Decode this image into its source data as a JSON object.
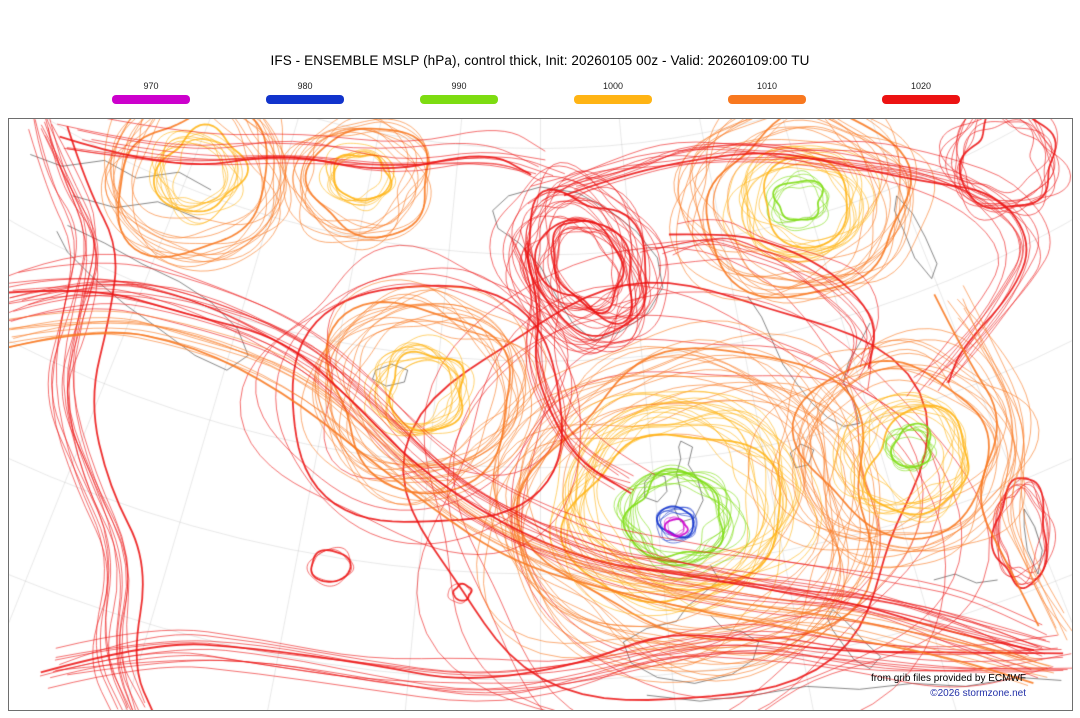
{
  "header": {
    "title": "IFS - ENSEMBLE MSLP (hPa), control thick, Init: 20260105 00z - Valid: 20260109:00 TU"
  },
  "legend": {
    "items": [
      {
        "label": "970",
        "color": "#cc00cc"
      },
      {
        "label": "980",
        "color": "#1133cc"
      },
      {
        "label": "990",
        "color": "#7ddc11"
      },
      {
        "label": "1000",
        "color": "#ffb414"
      },
      {
        "label": "1010",
        "color": "#f8781f"
      },
      {
        "label": "1020",
        "color": "#ec1212"
      }
    ]
  },
  "footer": {
    "credit": "from grib files provided by ECMWF",
    "copyright": "©2026 stormzone.net"
  },
  "chart_data": {
    "type": "spaghetti-contour",
    "model": "IFS - ENSEMBLE",
    "variable": "MSLP",
    "units": "hPa",
    "member_style": "control thick",
    "init": "20260105 00z",
    "valid": "20260109:00 TU",
    "levels_hpa": [
      970,
      980,
      990,
      1000,
      1010,
      1020
    ],
    "systems": [
      {
        "name": "low-british-isles",
        "cx": 0.632,
        "cy": 0.66,
        "ry": 0.85,
        "rings": [
          {
            "level": 1020,
            "r": 0.215,
            "members": 7,
            "wobble": 0.22
          },
          {
            "level": 1010,
            "r": 0.16,
            "members": 20,
            "wobble": 0.24
          },
          {
            "level": 1000,
            "r": 0.098,
            "members": 20,
            "wobble": 0.26,
            "cy": 0.645
          },
          {
            "level": 990,
            "r": 0.047,
            "members": 14,
            "wobble": 0.3,
            "cx": 0.628,
            "cy": 0.675
          },
          {
            "level": 980,
            "r": 0.017,
            "members": 6,
            "wobble": 0.3,
            "cx": 0.628,
            "cy": 0.685
          },
          {
            "level": 970,
            "r": 0.009,
            "members": 4,
            "wobble": 0.28,
            "cx": 0.627,
            "cy": 0.69
          }
        ]
      },
      {
        "name": "low-mid-atlantic",
        "cx": 0.387,
        "cy": 0.46,
        "ry": 0.9,
        "rings": [
          {
            "level": 1020,
            "r": 0.14,
            "members": 5,
            "wobble": 0.22
          },
          {
            "level": 1010,
            "r": 0.089,
            "members": 16,
            "wobble": 0.24
          },
          {
            "level": 1000,
            "r": 0.04,
            "members": 12,
            "wobble": 0.28
          }
        ]
      },
      {
        "name": "system-northwest",
        "cx": 0.175,
        "cy": 0.09,
        "ry": 0.95,
        "rings": [
          {
            "level": 1010,
            "r": 0.08,
            "members": 13,
            "wobble": 0.24
          },
          {
            "level": 1000,
            "r": 0.036,
            "members": 10,
            "wobble": 0.26
          }
        ]
      },
      {
        "name": "system-north-center",
        "cx": 0.33,
        "cy": 0.1,
        "ry": 0.9,
        "rings": [
          {
            "level": 1010,
            "r": 0.058,
            "members": 10,
            "wobble": 0.26
          },
          {
            "level": 1000,
            "r": 0.027,
            "members": 8,
            "wobble": 0.28
          }
        ]
      },
      {
        "name": "system-northeast",
        "cx": 0.745,
        "cy": 0.14,
        "ry": 0.85,
        "rings": [
          {
            "level": 1010,
            "r": 0.094,
            "members": 15,
            "wobble": 0.24
          },
          {
            "level": 1000,
            "r": 0.052,
            "members": 13,
            "wobble": 0.26
          },
          {
            "level": 990,
            "r": 0.023,
            "members": 6,
            "wobble": 0.3
          }
        ]
      },
      {
        "name": "system-east-europe",
        "cx": 0.842,
        "cy": 0.57,
        "ry": 0.9,
        "rings": [
          {
            "level": 1010,
            "r": 0.098,
            "members": 12,
            "wobble": 0.24
          },
          {
            "level": 1000,
            "r": 0.055,
            "members": 12,
            "wobble": 0.26
          },
          {
            "level": 990,
            "r": 0.02,
            "members": 7,
            "wobble": 0.32,
            "cx": 0.848,
            "cy": 0.555
          }
        ]
      },
      {
        "name": "cluster-greenland",
        "cx": 0.542,
        "cy": 0.25,
        "ry": 1.35,
        "rot": -0.55,
        "rings": [
          {
            "level": 1020,
            "r": 0.058,
            "members": 9,
            "wobble": 0.34
          },
          {
            "level": 1020,
            "r": 0.044,
            "members": 9,
            "wobble": 0.34
          },
          {
            "level": 1020,
            "r": 0.03,
            "members": 9,
            "wobble": 0.34
          }
        ]
      },
      {
        "name": "blob-top-right",
        "cx": 0.935,
        "cy": 0.07,
        "ry": 1.0,
        "rings": [
          {
            "level": 1020,
            "r": 0.045,
            "members": 10,
            "wobble": 0.36
          }
        ]
      },
      {
        "name": "eddy-southwest",
        "cx": 0.303,
        "cy": 0.76,
        "ry": 0.75,
        "rings": [
          {
            "level": 1020,
            "r": 0.02,
            "members": 3,
            "wobble": 0.2
          }
        ]
      },
      {
        "name": "eddy-south-center",
        "cx": 0.425,
        "cy": 0.8,
        "ry": 0.8,
        "rings": [
          {
            "level": 1020,
            "r": 0.01,
            "members": 2,
            "wobble": 0.2
          }
        ]
      },
      {
        "name": "cluster-caspian",
        "cx": 0.952,
        "cy": 0.7,
        "ry": 2.0,
        "rings": [
          {
            "level": 1020,
            "r": 0.022,
            "members": 7,
            "wobble": 0.3
          }
        ]
      }
    ],
    "bands": [
      {
        "name": "band-west-edge",
        "level": 1020,
        "members": 13,
        "spread": 0.01,
        "points": [
          [
            0.035,
            0.0
          ],
          [
            0.055,
            0.1
          ],
          [
            0.085,
            0.2
          ],
          [
            0.07,
            0.32
          ],
          [
            0.05,
            0.46
          ],
          [
            0.075,
            0.6
          ],
          [
            0.11,
            0.74
          ],
          [
            0.095,
            0.9
          ],
          [
            0.12,
            1.0
          ]
        ]
      },
      {
        "name": "band-main-diagonal",
        "level": 1020,
        "members": 16,
        "spread": 0.012,
        "points": [
          [
            0.0,
            0.3
          ],
          [
            0.08,
            0.27
          ],
          [
            0.17,
            0.3
          ],
          [
            0.265,
            0.37
          ],
          [
            0.335,
            0.47
          ],
          [
            0.395,
            0.58
          ],
          [
            0.465,
            0.67
          ],
          [
            0.555,
            0.735
          ],
          [
            0.645,
            0.77
          ],
          [
            0.73,
            0.79
          ],
          [
            0.81,
            0.81
          ],
          [
            0.885,
            0.845
          ],
          [
            0.97,
            0.9
          ]
        ]
      },
      {
        "name": "band-south",
        "level": 1020,
        "members": 11,
        "spread": 0.011,
        "points": [
          [
            0.04,
            0.93
          ],
          [
            0.14,
            0.89
          ],
          [
            0.24,
            0.91
          ],
          [
            0.34,
            0.94
          ],
          [
            0.44,
            0.96
          ],
          [
            0.54,
            0.94
          ],
          [
            0.62,
            0.9
          ],
          [
            0.7,
            0.885
          ],
          [
            0.79,
            0.91
          ],
          [
            0.89,
            0.93
          ],
          [
            0.99,
            0.91
          ]
        ]
      },
      {
        "name": "band-north",
        "level": 1020,
        "members": 9,
        "spread": 0.011,
        "points": [
          [
            0.06,
            0.04
          ],
          [
            0.16,
            0.07
          ],
          [
            0.26,
            0.05
          ],
          [
            0.36,
            0.08
          ],
          [
            0.45,
            0.055
          ],
          [
            0.5,
            0.09
          ]
        ]
      },
      {
        "name": "band-top-right-arc",
        "level": 1020,
        "members": 11,
        "spread": 0.012,
        "points": [
          [
            0.52,
            0.11
          ],
          [
            0.57,
            0.07
          ],
          [
            0.63,
            0.045
          ],
          [
            0.7,
            0.035
          ],
          [
            0.78,
            0.05
          ],
          [
            0.86,
            0.075
          ],
          [
            0.925,
            0.115
          ],
          [
            0.965,
            0.19
          ],
          [
            0.945,
            0.28
          ],
          [
            0.905,
            0.36
          ],
          [
            0.875,
            0.43
          ]
        ]
      },
      {
        "name": "band-greenland-south",
        "level": 1020,
        "members": 9,
        "spread": 0.01,
        "points": [
          [
            0.485,
            0.21
          ],
          [
            0.505,
            0.3
          ],
          [
            0.495,
            0.4
          ],
          [
            0.515,
            0.5
          ],
          [
            0.545,
            0.575
          ],
          [
            0.585,
            0.62
          ]
        ]
      },
      {
        "name": "band-norwegian-sea",
        "level": 1020,
        "members": 8,
        "spread": 0.011,
        "points": [
          [
            0.615,
            0.225
          ],
          [
            0.66,
            0.21
          ],
          [
            0.705,
            0.225
          ],
          [
            0.75,
            0.26
          ],
          [
            0.79,
            0.31
          ],
          [
            0.815,
            0.37
          ],
          [
            0.8,
            0.43
          ]
        ]
      },
      {
        "name": "band-orange-diagonal",
        "level": 1010,
        "members": 9,
        "spread": 0.011,
        "points": [
          [
            0.0,
            0.36
          ],
          [
            0.09,
            0.33
          ],
          [
            0.185,
            0.36
          ],
          [
            0.275,
            0.43
          ],
          [
            0.345,
            0.53
          ],
          [
            0.41,
            0.64
          ],
          [
            0.485,
            0.72
          ],
          [
            0.585,
            0.785
          ],
          [
            0.685,
            0.82
          ],
          [
            0.79,
            0.845
          ],
          [
            0.895,
            0.885
          ],
          [
            0.98,
            0.93
          ]
        ]
      },
      {
        "name": "band-orange-right-edge",
        "level": 1010,
        "members": 7,
        "spread": 0.011,
        "points": [
          [
            0.885,
            0.3
          ],
          [
            0.92,
            0.4
          ],
          [
            0.95,
            0.52
          ],
          [
            0.93,
            0.64
          ],
          [
            0.955,
            0.76
          ],
          [
            0.985,
            0.86
          ]
        ]
      }
    ]
  }
}
